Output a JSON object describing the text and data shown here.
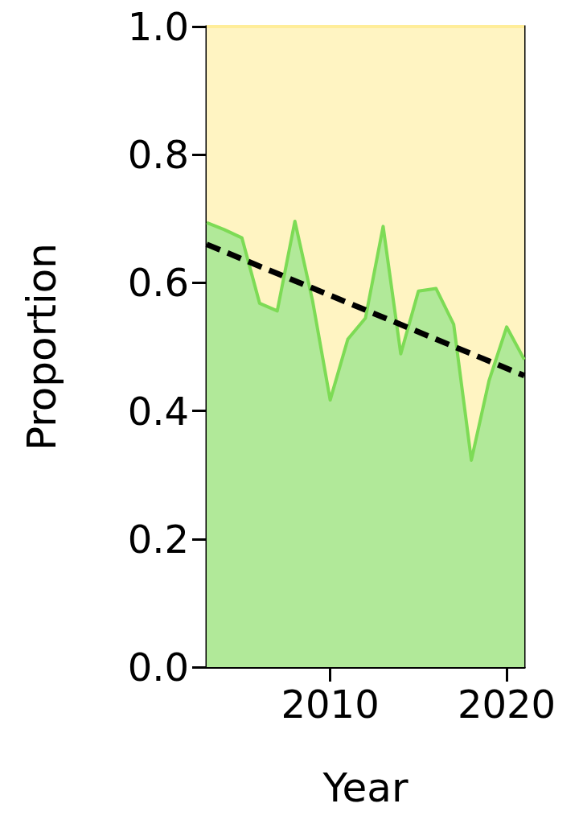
{
  "chart_data": {
    "type": "area",
    "xlabel": "Year",
    "ylabel": "Proportion",
    "x": [
      2003,
      2004,
      2005,
      2006,
      2007,
      2008,
      2009,
      2010,
      2011,
      2012,
      2013,
      2014,
      2015,
      2016,
      2017,
      2018,
      2019,
      2020,
      2021
    ],
    "series": [
      {
        "type": "area",
        "color": "#ffed99",
        "values": [
          1,
          1,
          1,
          1,
          1,
          1,
          1,
          1,
          1,
          1,
          1,
          1,
          1,
          1,
          1,
          1,
          1,
          1,
          1
        ]
      },
      {
        "color": "#7ddb55",
        "values": [
          0.694,
          0.683,
          0.67,
          0.568,
          0.556,
          0.696,
          0.572,
          0.417,
          0.512,
          0.545,
          0.688,
          0.489,
          0.587,
          0.591,
          0.535,
          0.323,
          0.447,
          0.531,
          0.48
        ]
      },
      {
        "type": "line",
        "color": "#000000",
        "line_style": "dashed",
        "x": [
          2003,
          2021
        ],
        "values": [
          0.66,
          0.455
        ]
      }
    ],
    "xlim": [
      2003,
      2021
    ],
    "xticks": [
      2010,
      2020
    ],
    "ylim": [
      0,
      1
    ],
    "yticks": [
      {
        "value": 0,
        "label": "0.0"
      },
      0.2,
      0.4,
      0.6,
      0.8,
      {
        "value": 1,
        "label": "1.0"
      }
    ],
    "marker": "none"
  }
}
